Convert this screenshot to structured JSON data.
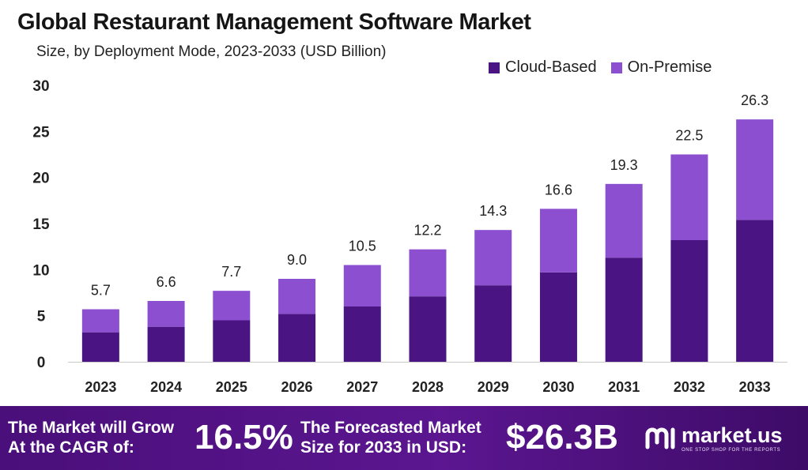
{
  "header": {
    "title": "Global Restaurant Management Software Market",
    "subtitle": "Size, by Deployment Mode, 2023-2033 (USD Billion)"
  },
  "chart_data": {
    "type": "bar",
    "stacked": true,
    "categories": [
      "2023",
      "2024",
      "2025",
      "2026",
      "2027",
      "2028",
      "2029",
      "2030",
      "2031",
      "2032",
      "2033"
    ],
    "series": [
      {
        "name": "Cloud-Based",
        "color": "#4a1583",
        "values": [
          3.2,
          3.8,
          4.5,
          5.2,
          6.0,
          7.1,
          8.3,
          9.7,
          11.3,
          13.2,
          15.4
        ]
      },
      {
        "name": "On-Premise",
        "color": "#8b4fd0",
        "values": [
          2.5,
          2.8,
          3.2,
          3.8,
          4.5,
          5.1,
          6.0,
          6.9,
          8.0,
          9.3,
          10.9
        ]
      }
    ],
    "totals": [
      5.7,
      6.6,
      7.7,
      9.0,
      10.5,
      12.2,
      14.3,
      16.6,
      19.3,
      22.5,
      26.3
    ],
    "total_labels": [
      "5.7",
      "6.6",
      "7.7",
      "9.0",
      "10.5",
      "12.2",
      "14.3",
      "16.6",
      "19.3",
      "22.5",
      "26.3"
    ],
    "yticks": [
      "0",
      "5",
      "10",
      "15",
      "20",
      "25",
      "30"
    ],
    "ylim": [
      0,
      30
    ],
    "legend_position": "top-right",
    "grid": false
  },
  "footer": {
    "cagr_line1": "The Market will Grow",
    "cagr_line2": "At the CAGR of:",
    "cagr_value": "16.5%",
    "forecast_line1": "The Forecasted Market",
    "forecast_line2": "Size for 2033 in USD:",
    "forecast_value": "$26.3B",
    "brand": "market.us",
    "tagline": "ONE STOP SHOP FOR THE REPORTS",
    "brand_icon": "market-us-logo-icon"
  }
}
